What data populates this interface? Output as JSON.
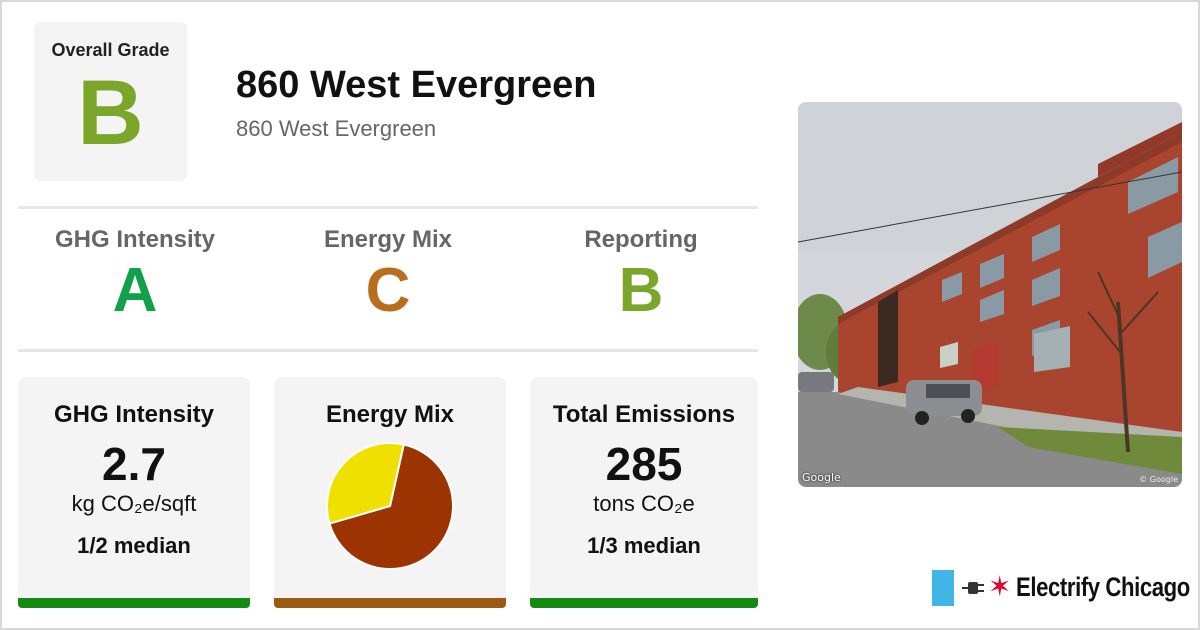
{
  "overall": {
    "label": "Overall Grade",
    "grade": "B",
    "color": "#7aa62a"
  },
  "building": {
    "title": "860 West Evergreen",
    "address": "860 West Evergreen"
  },
  "grades": [
    {
      "label": "GHG Intensity",
      "grade": "A",
      "color": "#12a04a"
    },
    {
      "label": "Energy Mix",
      "grade": "C",
      "color": "#b86e1c"
    },
    {
      "label": "Reporting",
      "grade": "B",
      "color": "#7aa62a"
    }
  ],
  "cards": {
    "ghg": {
      "title": "GHG Intensity",
      "value": "2.7",
      "unit": "kg CO₂e/sqft",
      "median": "1/2 median",
      "bar_color": "#148a14"
    },
    "mix": {
      "title": "Energy Mix",
      "bar_color": "#9a5a12"
    },
    "emissions": {
      "title": "Total Emissions",
      "value": "285",
      "unit": "tons CO₂e",
      "median": "1/3 median",
      "bar_color": "#148a14"
    }
  },
  "chart_data": {
    "type": "pie",
    "slices": [
      {
        "value": 0.67,
        "color": "#9b3400"
      },
      {
        "value": 0.33,
        "color": "#f0e000"
      }
    ]
  },
  "photo": {
    "credit_left": "Google",
    "credit_right": "© Google"
  },
  "brand": {
    "name": "Electrify Chicago",
    "flag_color": "#41b6e6",
    "star_color": "#e4002b",
    "icons": [
      "chicago-flag-icon",
      "plug-icon",
      "star-icon"
    ]
  }
}
